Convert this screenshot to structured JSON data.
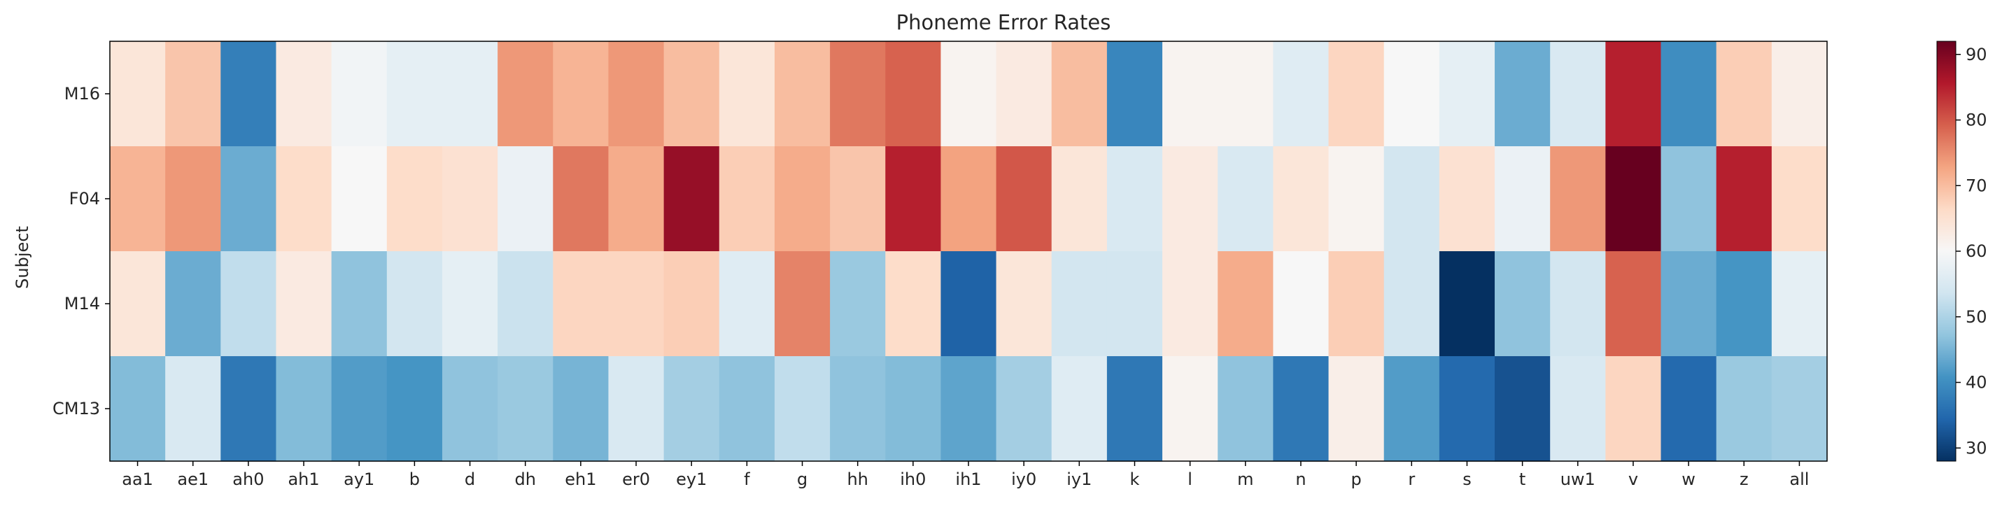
{
  "chart_data": {
    "type": "heatmap",
    "title": "Phoneme Error Rates",
    "xlabel": "",
    "ylabel": "Subject",
    "x_categories": [
      "aa1",
      "ae1",
      "ah0",
      "ah1",
      "ay1",
      "b",
      "d",
      "dh",
      "eh1",
      "er0",
      "ey1",
      "f",
      "g",
      "hh",
      "ih0",
      "ih1",
      "iy0",
      "iy1",
      "k",
      "l",
      "m",
      "n",
      "p",
      "r",
      "s",
      "t",
      "uw1",
      "v",
      "w",
      "z",
      "all"
    ],
    "y_categories": [
      "M16",
      "F04",
      "M14",
      "CM13"
    ],
    "values": [
      [
        64,
        69,
        38,
        63,
        59,
        57,
        57,
        74,
        71,
        74,
        70,
        64,
        70,
        77,
        79,
        61,
        63,
        70,
        39,
        61,
        61,
        56,
        67,
        60,
        57,
        44,
        55,
        85,
        40,
        68,
        62
      ],
      [
        71,
        74,
        44,
        66,
        60,
        66,
        65,
        58,
        77,
        72,
        88,
        68,
        72,
        69,
        85,
        73,
        80,
        64,
        55,
        63,
        55,
        64,
        61,
        54,
        65,
        58,
        74,
        92,
        47,
        85,
        66
      ],
      [
        64,
        44,
        52,
        63,
        47,
        54,
        57,
        53,
        67,
        67,
        68,
        56,
        76,
        48,
        66,
        34,
        64,
        54,
        54,
        63,
        72,
        60,
        68,
        54,
        28,
        47,
        54,
        79,
        44,
        41,
        57
      ],
      [
        46,
        55,
        37,
        46,
        42,
        41,
        47,
        48,
        45,
        55,
        49,
        47,
        52,
        47,
        46,
        43,
        49,
        56,
        37,
        61,
        47,
        37,
        62,
        42,
        35,
        32,
        55,
        67,
        35,
        48,
        49
      ]
    ],
    "colorbar": {
      "min": 28,
      "max": 92,
      "ticks": [
        30,
        40,
        50,
        60,
        70,
        80,
        90
      ]
    },
    "colormap": "RdBu_r",
    "grid": false
  }
}
